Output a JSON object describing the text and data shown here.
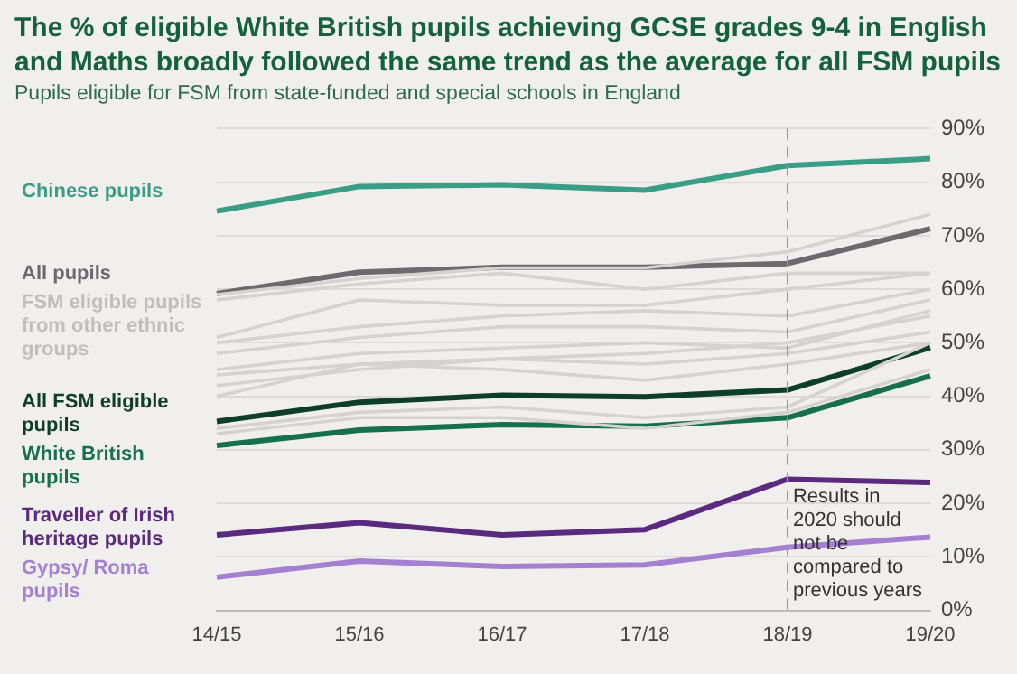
{
  "chart_data": {
    "type": "line",
    "title": "The % of eligible White British pupils achieving GCSE grades 9-4 in English and Maths broadly followed the same trend as the average for all FSM pupils",
    "subtitle": "Pupils eligible for FSM from state-funded and special schools in England",
    "categories": [
      "14/15",
      "15/16",
      "16/17",
      "17/18",
      "18/19",
      "19/20"
    ],
    "series": [
      {
        "name": "FSM eligible pupils from other ethnic groups",
        "color": "#d6d2cf",
        "values": [
          59,
          62,
          64,
          64,
          67,
          74
        ]
      },
      {
        "color": "#d6d2cf",
        "values": [
          58,
          61,
          63,
          60,
          63,
          63
        ]
      },
      {
        "color": "#d6d2cf",
        "values": [
          51,
          58,
          57,
          57,
          60,
          63
        ]
      },
      {
        "color": "#d6d2cf",
        "values": [
          50,
          53,
          55,
          56,
          55,
          60
        ]
      },
      {
        "color": "#d6d2cf",
        "values": [
          48,
          51,
          53,
          53,
          52,
          58
        ]
      },
      {
        "color": "#d6d2cf",
        "values": [
          45,
          48,
          49,
          50,
          49,
          56
        ]
      },
      {
        "color": "#d6d2cf",
        "values": [
          44,
          46,
          47,
          48,
          50,
          55
        ]
      },
      {
        "color": "#d6d2cf",
        "values": [
          42,
          45,
          47,
          46,
          48,
          52
        ]
      },
      {
        "color": "#d6d2cf",
        "values": [
          40,
          46,
          45,
          43,
          46,
          50
        ]
      },
      {
        "color": "#d6d2cf",
        "values": [
          34,
          37,
          38,
          36,
          38,
          50
        ]
      },
      {
        "color": "#d6d2cf",
        "values": [
          33,
          36,
          36,
          34,
          37,
          45
        ]
      },
      {
        "name": "Chinese pupils",
        "color": "#3a9e86",
        "values": [
          74.6,
          79.2,
          79.5,
          78.5,
          83.1,
          84.4
        ]
      },
      {
        "name": "All pupils",
        "color": "#6d6a6f",
        "values": [
          59.2,
          63.2,
          64.1,
          64.1,
          64.8,
          71.3
        ]
      },
      {
        "name": "All FSM eligible pupils",
        "color": "#0d3d2b",
        "values": [
          35.3,
          38.9,
          40.2,
          39.9,
          41.2,
          49.1
        ]
      },
      {
        "name": "White British pupils",
        "color": "#16704f",
        "values": [
          30.8,
          33.7,
          34.7,
          34.4,
          36,
          43.8
        ]
      },
      {
        "name": "Traveller of Irish heritage pupils",
        "color": "#5a2a7e",
        "values": [
          14.1,
          16.4,
          14.1,
          15.1,
          24.5,
          23.9
        ]
      },
      {
        "name": "Gypsy/ Roma pupils",
        "color": "#a57fd0",
        "values": [
          6.2,
          9.2,
          8.2,
          8.5,
          11.8,
          13.7
        ]
      }
    ],
    "ylim": [
      0,
      90
    ],
    "yticks": [
      {
        "value": 0,
        "label": "0%"
      },
      {
        "value": 10,
        "label": "10%"
      },
      {
        "value": 20,
        "label": "20%"
      },
      {
        "value": 30,
        "label": "30%"
      },
      {
        "value": 40,
        "label": "40%"
      },
      {
        "value": 50,
        "label": "50%"
      },
      {
        "value": 60,
        "label": "60%"
      },
      {
        "value": 70,
        "label": "70%"
      },
      {
        "value": 80,
        "label": "80%"
      },
      {
        "value": 90,
        "label": "90%"
      }
    ],
    "grid": "y",
    "legend": false,
    "marker": "none",
    "line_style": "solid",
    "ref_lines": [
      {
        "axis": "x",
        "value": "18/19",
        "label": "Results in 2020 should not be compared to previous years",
        "color": "#9a9a9a",
        "line_style": "dashed"
      }
    ]
  }
}
